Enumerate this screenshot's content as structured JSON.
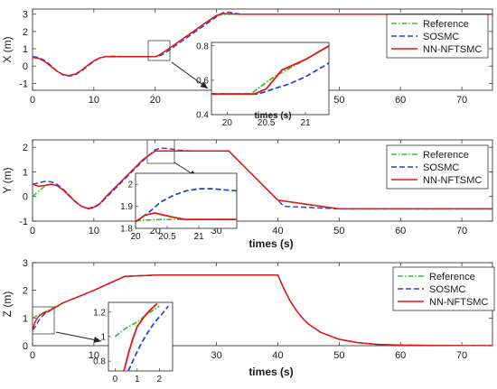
{
  "chart_data": [
    {
      "type": "line",
      "ylabel": "X (m)",
      "xlabel": "",
      "xlim": [
        0,
        75
      ],
      "ylim": [
        -1.4,
        3.3
      ],
      "xticks": [
        0,
        10,
        20,
        30,
        40,
        50,
        60,
        70
      ],
      "yticks": [
        -1,
        0,
        1,
        2,
        3
      ],
      "legend": {
        "position": "top-right",
        "entries": [
          "Reference",
          "SOSMC",
          "NN-NFTSMC"
        ]
      },
      "series": [
        {
          "name": "Reference",
          "color": "#22cc22",
          "dash": "dashdot",
          "x": [
            0,
            1,
            2,
            3,
            4,
            5,
            6,
            7,
            8,
            9,
            10,
            11,
            12,
            13,
            14,
            15,
            20,
            20.5,
            22,
            24,
            26,
            28,
            30,
            32,
            34,
            40,
            50,
            60,
            75
          ],
          "y": [
            0.5,
            0.45,
            0.26,
            -0.02,
            -0.3,
            -0.5,
            -0.55,
            -0.46,
            -0.24,
            0.04,
            0.3,
            0.48,
            0.55,
            0.55,
            0.55,
            0.55,
            0.55,
            0.6,
            0.95,
            1.45,
            1.95,
            2.45,
            2.93,
            3.0,
            3.0,
            3.0,
            3.0,
            3.0,
            3.0
          ]
        },
        {
          "name": "SOSMC",
          "color": "#1f3fe0",
          "dash": "dashed",
          "x": [
            0,
            1,
            2,
            3,
            4,
            5,
            6,
            7,
            8,
            9,
            10,
            11,
            12,
            13,
            14,
            15,
            20,
            21,
            22,
            24,
            26,
            28,
            30,
            31,
            32,
            33,
            34,
            40,
            50,
            60,
            75
          ],
          "y": [
            0.55,
            0.5,
            0.32,
            0.04,
            -0.3,
            -0.52,
            -0.58,
            -0.5,
            -0.28,
            0.0,
            0.27,
            0.47,
            0.56,
            0.57,
            0.56,
            0.55,
            0.55,
            0.62,
            0.85,
            1.35,
            1.85,
            2.35,
            2.85,
            3.08,
            3.12,
            3.05,
            3.0,
            3.0,
            3.0,
            3.0,
            3.0
          ]
        },
        {
          "name": "NN-NFTSMC",
          "color": "#e81414",
          "dash": "solid",
          "x": [
            0,
            1,
            2,
            3,
            4,
            5,
            6,
            7,
            8,
            9,
            10,
            11,
            12,
            13,
            14,
            15,
            20,
            20.5,
            22,
            24,
            26,
            28,
            30,
            31,
            32,
            34,
            40,
            50,
            60,
            75
          ],
          "y": [
            0.5,
            0.45,
            0.26,
            -0.02,
            -0.3,
            -0.5,
            -0.55,
            -0.46,
            -0.24,
            0.04,
            0.3,
            0.48,
            0.55,
            0.55,
            0.55,
            0.55,
            0.55,
            0.6,
            0.95,
            1.45,
            1.95,
            2.45,
            2.93,
            3.04,
            3.02,
            3.0,
            3.0,
            3.0,
            3.0,
            3.0
          ]
        }
      ],
      "inset": {
        "xlim": [
          19.8,
          21.3
        ],
        "ylim": [
          0.4,
          0.82
        ],
        "xticks": [
          20,
          20.5,
          21
        ],
        "yticks": [
          0.4,
          0.6,
          0.8
        ],
        "xlabel": "times (s)",
        "series": [
          {
            "name": "Reference",
            "x": [
              19.8,
              20.3,
              20.6,
              21.0,
              21.3
            ],
            "y": [
              0.52,
              0.52,
              0.62,
              0.72,
              0.8
            ]
          },
          {
            "name": "SOSMC",
            "x": [
              19.8,
              20.4,
              20.6,
              20.8,
              21.0,
              21.3
            ],
            "y": [
              0.52,
              0.52,
              0.55,
              0.58,
              0.62,
              0.7
            ]
          },
          {
            "name": "NN-NFTSMC",
            "x": [
              19.8,
              20.35,
              20.5,
              20.7,
              21.0,
              21.3
            ],
            "y": [
              0.52,
              0.52,
              0.55,
              0.66,
              0.72,
              0.8
            ]
          }
        ]
      }
    },
    {
      "type": "line",
      "ylabel": "Y (m)",
      "xlabel": "times (s)",
      "xlim": [
        0,
        75
      ],
      "ylim": [
        -1.0,
        2.3
      ],
      "xticks": [
        0,
        10,
        20,
        30,
        40,
        50,
        60,
        70
      ],
      "yticks": [
        -1,
        0,
        1,
        2
      ],
      "legend": {
        "position": "top-right",
        "entries": [
          "Reference",
          "SOSMC",
          "NN-NFTSMC"
        ]
      },
      "series": [
        {
          "name": "Reference",
          "color": "#22cc22",
          "dash": "dashdot",
          "x": [
            0,
            1,
            2,
            3,
            4,
            5,
            6,
            7,
            8,
            9,
            10,
            11,
            12,
            14,
            16,
            18,
            20,
            22,
            24,
            26,
            28,
            30,
            32,
            34,
            36,
            38,
            40,
            50,
            60,
            75
          ],
          "y": [
            0.0,
            0.22,
            0.42,
            0.5,
            0.44,
            0.26,
            0.02,
            -0.22,
            -0.4,
            -0.48,
            -0.43,
            -0.28,
            0.0,
            0.5,
            1.0,
            1.5,
            1.85,
            1.85,
            1.85,
            1.85,
            1.85,
            1.85,
            1.85,
            1.35,
            0.85,
            0.35,
            -0.15,
            -0.5,
            -0.5,
            -0.5
          ]
        },
        {
          "name": "SOSMC",
          "color": "#1f3fe0",
          "dash": "dashed",
          "x": [
            0,
            1,
            2,
            3,
            4,
            5,
            6,
            7,
            8,
            9,
            10,
            11,
            12,
            14,
            16,
            18,
            20,
            21,
            22,
            24,
            26,
            28,
            30,
            32,
            34,
            36,
            38,
            40,
            41,
            50,
            60,
            75
          ],
          "y": [
            0.5,
            0.55,
            0.62,
            0.6,
            0.5,
            0.3,
            0.05,
            -0.2,
            -0.4,
            -0.5,
            -0.46,
            -0.3,
            -0.05,
            0.45,
            0.95,
            1.45,
            1.9,
            1.97,
            1.95,
            1.88,
            1.85,
            1.85,
            1.85,
            1.85,
            1.35,
            0.85,
            0.35,
            -0.15,
            -0.4,
            -0.5,
            -0.5,
            -0.5
          ]
        },
        {
          "name": "NN-NFTSMC",
          "color": "#e81414",
          "dash": "solid",
          "x": [
            0,
            1,
            2,
            3,
            4,
            5,
            6,
            7,
            8,
            9,
            10,
            11,
            12,
            14,
            16,
            18,
            20,
            22,
            24,
            26,
            28,
            30,
            32,
            34,
            36,
            38,
            40,
            50,
            60,
            75
          ],
          "y": [
            0.5,
            0.42,
            0.45,
            0.5,
            0.44,
            0.26,
            0.02,
            -0.22,
            -0.4,
            -0.48,
            -0.43,
            -0.28,
            0.0,
            0.5,
            1.0,
            1.5,
            1.85,
            1.85,
            1.85,
            1.85,
            1.85,
            1.85,
            1.85,
            1.35,
            0.85,
            0.35,
            -0.15,
            -0.5,
            -0.5,
            -0.5
          ]
        }
      ],
      "inset": {
        "xlim": [
          20.0,
          21.6
        ],
        "ylim": [
          1.8,
          2.05
        ],
        "xticks": [
          20,
          20.5,
          21
        ],
        "yticks": [
          1.8,
          1.9,
          2
        ],
        "xlabel": "",
        "series": [
          {
            "name": "Reference",
            "x": [
              20.0,
              20.4,
              21.6
            ],
            "y": [
              1.835,
              1.84,
              1.84
            ]
          },
          {
            "name": "SOSMC",
            "x": [
              20.0,
              20.2,
              20.4,
              20.6,
              20.8,
              21.0,
              21.2,
              21.4,
              21.6
            ],
            "y": [
              1.83,
              1.87,
              1.92,
              1.95,
              1.97,
              1.98,
              1.98,
              1.975,
              1.97
            ]
          },
          {
            "name": "NN-NFTSMC",
            "x": [
              20.0,
              20.15,
              20.3,
              20.45,
              20.6,
              20.8,
              21.0,
              21.6
            ],
            "y": [
              1.83,
              1.86,
              1.87,
              1.86,
              1.85,
              1.84,
              1.84,
              1.84
            ]
          }
        ]
      }
    },
    {
      "type": "line",
      "ylabel": "Z (m)",
      "xlabel": "times (s)",
      "xlim": [
        0,
        75
      ],
      "ylim": [
        0,
        3
      ],
      "xticks": [
        0,
        10,
        20,
        30,
        40,
        50,
        60,
        70
      ],
      "yticks": [
        0,
        1,
        2,
        3
      ],
      "legend": {
        "position": "top-right",
        "entries": [
          "Reference",
          "SOSMC",
          "NN-NFTSMC"
        ]
      },
      "series": [
        {
          "name": "Reference",
          "color": "#22cc22",
          "dash": "dashdot",
          "x": [
            0,
            5,
            10,
            15,
            20,
            25,
            30,
            35,
            40,
            41,
            42,
            43,
            44,
            45,
            47,
            50,
            53,
            56,
            60,
            65,
            70,
            75
          ],
          "y": [
            1.0,
            1.55,
            2.0,
            2.5,
            2.55,
            2.55,
            2.55,
            2.55,
            2.55,
            2.05,
            1.62,
            1.28,
            1.0,
            0.78,
            0.48,
            0.23,
            0.11,
            0.05,
            0.02,
            0.01,
            0.0,
            0.0
          ]
        },
        {
          "name": "SOSMC",
          "color": "#1f3fe0",
          "dash": "dashed",
          "x": [
            0,
            0.5,
            1,
            1.5,
            2,
            2.5,
            5,
            10,
            15,
            20,
            25,
            30,
            35,
            40,
            41,
            42,
            43,
            44,
            45,
            47,
            50,
            53,
            56,
            60,
            65,
            70,
            75
          ],
          "y": [
            0.55,
            0.7,
            0.9,
            1.05,
            1.15,
            1.22,
            1.55,
            2.0,
            2.5,
            2.55,
            2.55,
            2.55,
            2.55,
            2.55,
            2.05,
            1.62,
            1.28,
            1.0,
            0.78,
            0.48,
            0.23,
            0.11,
            0.05,
            0.02,
            0.01,
            0.0,
            0.0
          ]
        },
        {
          "name": "NN-NFTSMC",
          "color": "#e81414",
          "dash": "solid",
          "x": [
            0,
            0.4,
            0.8,
            1.2,
            1.8,
            2.5,
            5,
            10,
            15,
            20,
            25,
            30,
            35,
            40,
            41,
            42,
            43,
            44,
            45,
            47,
            50,
            53,
            56,
            60,
            65,
            70,
            75
          ],
          "y": [
            0.55,
            0.85,
            1.0,
            1.1,
            1.18,
            1.23,
            1.55,
            2.0,
            2.5,
            2.55,
            2.55,
            2.55,
            2.55,
            2.55,
            2.05,
            1.62,
            1.28,
            1.0,
            0.78,
            0.48,
            0.23,
            0.11,
            0.05,
            0.02,
            0.01,
            0.0,
            0.0
          ]
        }
      ],
      "inset": {
        "xlim": [
          -0.3,
          2.6
        ],
        "ylim": [
          0.72,
          1.28
        ],
        "xticks": [
          0,
          1,
          2
        ],
        "yticks": [
          0.8,
          1,
          1.2
        ],
        "xlabel": "",
        "series": [
          {
            "name": "Reference",
            "x": [
              0,
              0.5,
              1.0,
              1.5,
              2.0
            ],
            "y": [
              1.0,
              1.07,
              1.12,
              1.19,
              1.25
            ]
          },
          {
            "name": "SOSMC",
            "x": [
              0.6,
              0.9,
              1.2,
              1.5,
              1.8,
              2.1,
              2.4
            ],
            "y": [
              0.72,
              0.84,
              0.95,
              1.04,
              1.12,
              1.18,
              1.25
            ]
          },
          {
            "name": "NN-NFTSMC",
            "x": [
              0.4,
              0.6,
              0.8,
              1.0,
              1.3,
              1.6,
              1.9
            ],
            "y": [
              0.72,
              0.86,
              0.98,
              1.08,
              1.16,
              1.22,
              1.27
            ]
          }
        ]
      }
    }
  ]
}
